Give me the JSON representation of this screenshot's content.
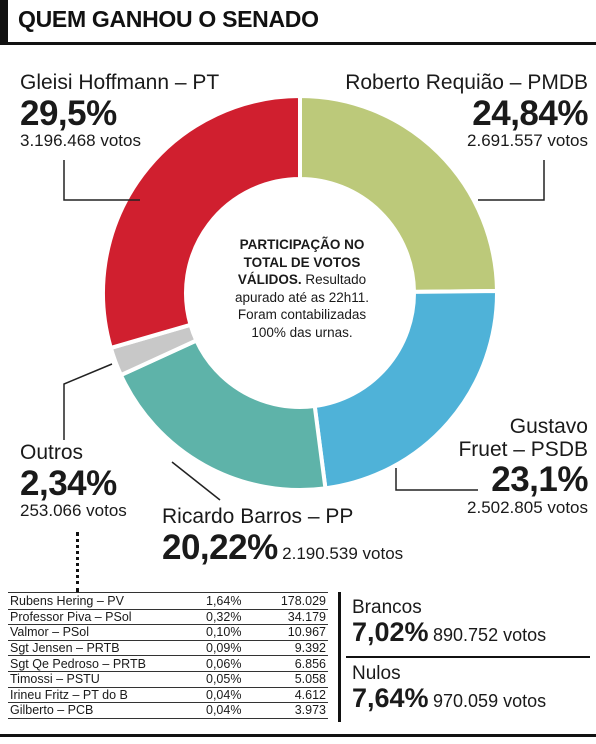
{
  "header": {
    "title": "QUEM GANHOU O SENADO"
  },
  "colors": {
    "pt": "#d01f2f",
    "pmdb": "#bcc97a",
    "psdb": "#4fb2d8",
    "pp": "#5eb3a9",
    "outros": "#c8c8c8"
  },
  "chart_data": {
    "type": "pie",
    "title": "QUEM GANHOU O SENADO",
    "slices": [
      {
        "name": "Roberto Requião – PMDB",
        "pct_label": "24,84%",
        "value": 24.84,
        "votes": "2.691.557 votos",
        "color": "#bcc97a"
      },
      {
        "name": "Gustavo Fruet – PSDB",
        "name_line1": "Gustavo",
        "name_line2": "Fruet – PSDB",
        "pct_label": "23,1%",
        "value": 23.1,
        "votes": "2.502.805 votos",
        "color": "#4fb2d8"
      },
      {
        "name": "Ricardo Barros – PP",
        "pct_label": "20,22%",
        "value": 20.22,
        "votes": "2.190.539 votos",
        "color": "#5eb3a9"
      },
      {
        "name": "Outros",
        "pct_label": "2,34%",
        "value": 2.34,
        "votes": "253.066 votos",
        "color": "#c8c8c8"
      },
      {
        "name": "Gleisi Hoffmann – PT",
        "pct_label": "29,5%",
        "value": 29.5,
        "votes": "3.196.468 votos",
        "color": "#d01f2f"
      }
    ]
  },
  "center_note": {
    "bold": "PARTICIPAÇÃO NO TOTAL DE VOTOS VÁLIDOS.",
    "text": "Resultado apurado até as 22h11. Foram contabilizadas 100% das urnas."
  },
  "outros_table": [
    {
      "name": "Rubens Hering – PV",
      "pct": "1,64%",
      "votes": "178.029"
    },
    {
      "name": "Professor Piva – PSol",
      "pct": "0,32%",
      "votes": "34.179"
    },
    {
      "name": "Valmor – PSol",
      "pct": "0,10%",
      "votes": "10.967"
    },
    {
      "name": "Sgt Jensen – PRTB",
      "pct": "0,09%",
      "votes": "9.392"
    },
    {
      "name": "Sgt Qe Pedroso – PRTB",
      "pct": "0,06%",
      "votes": "6.856"
    },
    {
      "name": "Timossi – PSTU",
      "pct": "0,05%",
      "votes": "5.058"
    },
    {
      "name": "Irineu Fritz – PT do B",
      "pct": "0,04%",
      "votes": "4.612"
    },
    {
      "name": "Gilberto – PCB",
      "pct": "0,04%",
      "votes": "3.973"
    }
  ],
  "brancos": {
    "label": "Brancos",
    "pct": "7,02%",
    "votes": "890.752 votos"
  },
  "nulos": {
    "label": "Nulos",
    "pct": "7,64%",
    "votes": "970.059 votos"
  }
}
